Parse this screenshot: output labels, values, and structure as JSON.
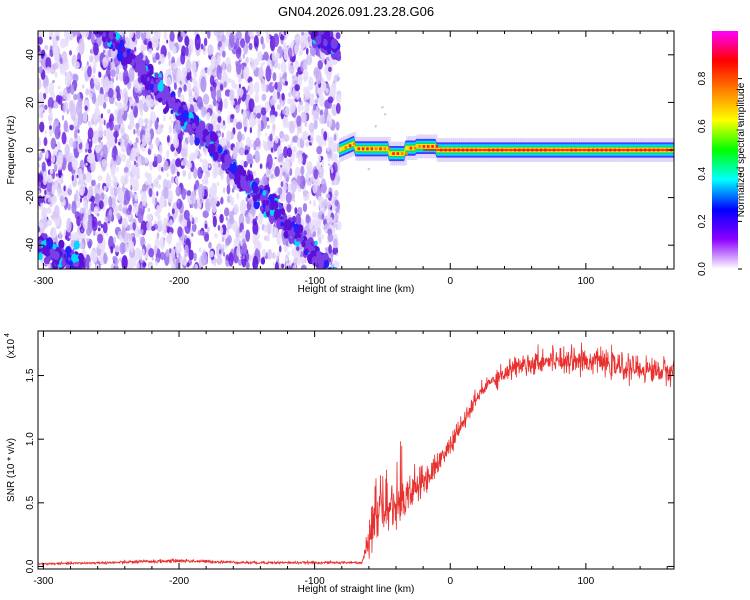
{
  "chart_data": [
    {
      "type": "heatmap",
      "title": "GN04.2026.091.23.28.G06",
      "xlabel": "Height of straight line (km)",
      "ylabel": "Frequency (Hz)",
      "xlim": [
        -304,
        165
      ],
      "ylim": [
        -50,
        50
      ],
      "x_ticks": [
        -300,
        -200,
        -100,
        0,
        100
      ],
      "x_tick_labels": [
        "-300",
        "-200",
        "-100",
        "0",
        "100"
      ],
      "y_ticks": [
        -40,
        -20,
        0,
        20,
        40
      ],
      "y_tick_labels": [
        "-40",
        "-20",
        "0",
        "20",
        "40"
      ],
      "signal_start_x": -82,
      "diagonal_band": {
        "x": [
          -304,
          -82
        ],
        "y": [
          80,
          -55
        ]
      },
      "upper_band": {
        "x": [
          -103,
          -82
        ],
        "y": [
          50,
          42
        ]
      },
      "lower_band": {
        "x": [
          -304,
          -270
        ],
        "y": [
          -40,
          -50
        ]
      },
      "tracked_tone_y": [
        0,
        0
      ],
      "colorbar": {
        "label": "Normalized spectral amplitude",
        "range": [
          0,
          1
        ],
        "ticks": [
          0,
          0.2,
          0.4,
          0.6,
          0.8
        ],
        "tick_labels": [
          "0.0",
          "0.2",
          "0.4",
          "0.6",
          "0.8"
        ],
        "colors": [
          "#ffffff",
          "#8b00ff",
          "#0000ff",
          "#00ffff",
          "#00ff00",
          "#ffff00",
          "#ff8000",
          "#ff0000",
          "#ff00ff"
        ]
      }
    },
    {
      "type": "line",
      "xlabel": "Height of straight line (km)",
      "ylabel": "SNR (10 * v/v)",
      "scale_note": "(x10",
      "scale_exp": "4",
      "xlim": [
        -304,
        165
      ],
      "ylim": [
        -0.02,
        1.85
      ],
      "x_ticks": [
        -300,
        -200,
        -100,
        0,
        100
      ],
      "x_tick_labels": [
        "-300",
        "-200",
        "-100",
        "0",
        "100"
      ],
      "y_ticks": [
        0.0,
        0.5,
        1.0,
        1.5
      ],
      "y_tick_labels": [
        "0.0",
        "0.5",
        "1.0",
        "1.5"
      ],
      "line_color": "#e8302e",
      "series": [
        {
          "name": "SNR",
          "x": [
            -304,
            -250,
            -200,
            -150,
            -100,
            -80,
            -65,
            -60,
            -55,
            -50,
            -45,
            -40,
            -30,
            -20,
            -10,
            0,
            10,
            20,
            30,
            40,
            50,
            60,
            70,
            80,
            90,
            100,
            110,
            120,
            130,
            140,
            150,
            165
          ],
          "values": [
            0.02,
            0.03,
            0.045,
            0.03,
            0.03,
            0.03,
            0.03,
            0.2,
            0.38,
            0.42,
            0.45,
            0.48,
            0.58,
            0.66,
            0.8,
            0.95,
            1.14,
            1.33,
            1.46,
            1.52,
            1.58,
            1.6,
            1.62,
            1.63,
            1.63,
            1.62,
            1.6,
            1.58,
            1.56,
            1.55,
            1.54,
            1.53
          ],
          "noise": [
            0.008,
            0.01,
            0.015,
            0.01,
            0.01,
            0.01,
            0.01,
            0.18,
            0.22,
            0.22,
            0.2,
            0.18,
            0.15,
            0.12,
            0.09,
            0.08,
            0.07,
            0.07,
            0.07,
            0.08,
            0.09,
            0.09,
            0.1,
            0.1,
            0.1,
            0.1,
            0.1,
            0.1,
            0.1,
            0.1,
            0.1,
            0.1
          ]
        }
      ]
    }
  ]
}
